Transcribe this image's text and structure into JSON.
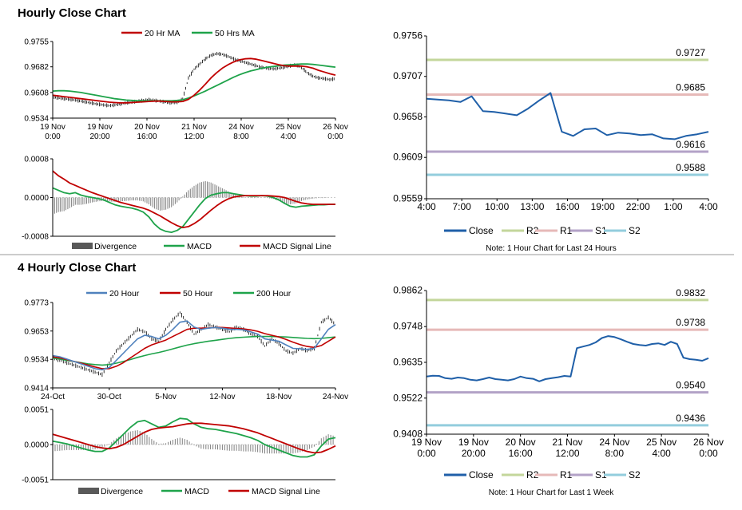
{
  "sections": {
    "hourly_title": "Hourly Close Chart",
    "four_hourly_title": "4 Hourly Close Chart"
  },
  "colors": {
    "close": "#1f5fa8",
    "ma20": "#c00000",
    "ma50": "#1ea34a",
    "r2": "#c3d69b",
    "r1": "#e6b9b8",
    "s1": "#b3a2c7",
    "s2": "#93cddd",
    "price": "#000000",
    "divergence": "#7f7f7f",
    "macd": "#1ea34a",
    "signal": "#c00000",
    "h4_20": "#4f81bd",
    "h4_50": "#c00000",
    "h4_200": "#1ea34a"
  },
  "chart_data": [
    {
      "id": "hourly_price",
      "type": "line",
      "title": "Hourly Close Chart",
      "xlabels": [
        "19 Nov\n0:00",
        "19 Nov\n20:00",
        "20 Nov\n16:00",
        "21 Nov\n12:00",
        "24 Nov\n8:00",
        "25 Nov\n4:00",
        "26 Nov\n0:00"
      ],
      "yticks": [
        "0.9755",
        "0.9682",
        "0.9608",
        "0.9534"
      ],
      "ylim": [
        0.9534,
        0.9755
      ],
      "legend": [
        "20 Hr MA",
        "50 Hrs MA"
      ],
      "price": [
        0.9595,
        0.9592,
        0.959,
        0.9588,
        0.9586,
        0.9583,
        0.958,
        0.9577,
        0.9574,
        0.9572,
        0.957,
        0.9572,
        0.9575,
        0.9578,
        0.958,
        0.9583,
        0.9585,
        0.9587,
        0.9585,
        0.9583,
        0.958,
        0.9578,
        0.958,
        0.959,
        0.965,
        0.9675,
        0.969,
        0.9705,
        0.9715,
        0.972,
        0.9718,
        0.9712,
        0.9705,
        0.97,
        0.9695,
        0.969,
        0.9685,
        0.968,
        0.9678,
        0.9676,
        0.9678,
        0.9681,
        0.9685,
        0.9688,
        0.968,
        0.9665,
        0.9655,
        0.965,
        0.9648,
        0.9645,
        0.9648
      ],
      "ma20": [
        0.96,
        0.9598,
        0.9596,
        0.9594,
        0.9592,
        0.959,
        0.9588,
        0.9586,
        0.9584,
        0.9582,
        0.958,
        0.9579,
        0.9578,
        0.9578,
        0.9579,
        0.958,
        0.9581,
        0.9582,
        0.9583,
        0.9583,
        0.9582,
        0.9581,
        0.9581,
        0.9582,
        0.9588,
        0.96,
        0.9615,
        0.9632,
        0.965,
        0.9665,
        0.9678,
        0.9688,
        0.9696,
        0.9702,
        0.9705,
        0.9706,
        0.9704,
        0.97,
        0.9696,
        0.9692,
        0.9688,
        0.9685,
        0.9684,
        0.9684,
        0.9684,
        0.9682,
        0.9678,
        0.9672,
        0.9667,
        0.9662,
        0.9658
      ],
      "ma50": [
        0.9612,
        0.9613,
        0.9613,
        0.9612,
        0.961,
        0.9608,
        0.9605,
        0.9602,
        0.9599,
        0.9596,
        0.9593,
        0.959,
        0.9588,
        0.9586,
        0.9585,
        0.9584,
        0.9584,
        0.9584,
        0.9584,
        0.9584,
        0.9584,
        0.9584,
        0.9585,
        0.9587,
        0.9592,
        0.9598,
        0.9605,
        0.9612,
        0.962,
        0.9628,
        0.9636,
        0.9644,
        0.9652,
        0.9659,
        0.9665,
        0.967,
        0.9674,
        0.9678,
        0.9681,
        0.9683,
        0.9685,
        0.9687,
        0.9688,
        0.9689,
        0.969,
        0.969,
        0.9689,
        0.9687,
        0.9685,
        0.9683,
        0.9681
      ]
    },
    {
      "id": "hourly_macd",
      "type": "line",
      "yticks": [
        "0.0008",
        "0.0000",
        "-0.0008"
      ],
      "ylim": [
        -0.0008,
        0.0008
      ],
      "legend": [
        "Divergence",
        "MACD",
        "MACD Signal Line"
      ],
      "macd": [
        0.0002,
        0.00015,
        0.0001,
        8e-05,
        0.0001,
        5e-05,
        2e-05,
        0.0,
        -2e-05,
        -5e-05,
        -0.0001,
        -0.00015,
        -0.00018,
        -0.0002,
        -0.00022,
        -0.00025,
        -0.0003,
        -0.0004,
        -0.00055,
        -0.00065,
        -0.0007,
        -0.00072,
        -0.00068,
        -0.0006,
        -0.00045,
        -0.0003,
        -0.00015,
        -2e-05,
        5e-05,
        8e-05,
        0.0001,
        0.0001,
        8e-05,
        6e-05,
        4e-05,
        3e-05,
        3e-05,
        4e-05,
        3e-05,
        0.0,
        -5e-05,
        -0.00012,
        -0.00018,
        -0.0002,
        -0.00018,
        -0.00017,
        -0.00016,
        -0.00015,
        -0.00015,
        -0.00014,
        -0.00014
      ],
      "signal": [
        0.00055,
        0.00045,
        0.00038,
        0.0003,
        0.00025,
        0.0002,
        0.00015,
        0.0001,
        6e-05,
        2e-05,
        -2e-05,
        -6e-05,
        -0.0001,
        -0.00013,
        -0.00016,
        -0.00019,
        -0.00022,
        -0.00026,
        -0.00032,
        -0.00038,
        -0.00045,
        -0.00052,
        -0.00058,
        -0.00062,
        -0.0006,
        -0.00054,
        -0.00046,
        -0.00036,
        -0.00026,
        -0.00017,
        -9e-05,
        -3e-05,
        1e-05,
        3e-05,
        4e-05,
        4e-05,
        4e-05,
        4e-05,
        4e-05,
        3e-05,
        2e-05,
        0.0,
        -4e-05,
        -8e-05,
        -0.00011,
        -0.00013,
        -0.00014,
        -0.00014,
        -0.00014,
        -0.00014,
        -0.00014
      ]
    },
    {
      "id": "hourly_levels",
      "type": "line",
      "note": "Note: 1 Hour Chart for Last 24 Hours",
      "xlabels": [
        "4:00",
        "7:00",
        "10:00",
        "13:00",
        "16:00",
        "19:00",
        "22:00",
        "1:00",
        "4:00"
      ],
      "yticks": [
        "0.9756",
        "0.9707",
        "0.9658",
        "0.9609",
        "0.9559"
      ],
      "ylim": [
        0.9559,
        0.9756
      ],
      "legend": [
        "Close",
        "R2",
        "R1",
        "S1",
        "S2"
      ],
      "levels": {
        "R2": 0.9727,
        "R1": 0.9685,
        "S1": 0.9616,
        "S2": 0.9588
      },
      "level_labels": {
        "R2": "0.9727",
        "R1": "0.9685",
        "S1": "0.9616",
        "S2": "0.9588"
      },
      "close": [
        0.968,
        0.9679,
        0.9678,
        0.9676,
        0.9683,
        0.9665,
        0.9664,
        0.9662,
        0.966,
        0.9668,
        0.9678,
        0.9687,
        0.964,
        0.9635,
        0.9643,
        0.9644,
        0.9636,
        0.9639,
        0.9638,
        0.9636,
        0.9637,
        0.9632,
        0.9631,
        0.9635,
        0.9637,
        0.964
      ]
    },
    {
      "id": "four_hourly_price",
      "type": "line",
      "title": "4 Hourly Close Chart",
      "xlabels": [
        "24-Oct",
        "30-Oct",
        "5-Nov",
        "12-Nov",
        "18-Nov",
        "24-Nov"
      ],
      "yticks": [
        "0.9773",
        "0.9653",
        "0.9534",
        "0.9414"
      ],
      "ylim": [
        0.9414,
        0.9773
      ],
      "legend": [
        "20 Hour",
        "50 Hour",
        "200 Hour"
      ],
      "price": [
        0.954,
        0.953,
        0.952,
        0.951,
        0.95,
        0.949,
        0.948,
        0.947,
        0.952,
        0.957,
        0.96,
        0.963,
        0.966,
        0.965,
        0.962,
        0.961,
        0.966,
        0.97,
        0.973,
        0.969,
        0.964,
        0.966,
        0.968,
        0.967,
        0.966,
        0.965,
        0.967,
        0.966,
        0.964,
        0.963,
        0.959,
        0.962,
        0.96,
        0.957,
        0.956,
        0.958,
        0.957,
        0.958,
        0.969,
        0.971,
        0.968
      ],
      "ma20": [
        0.955,
        0.9545,
        0.9535,
        0.9525,
        0.9515,
        0.9505,
        0.9495,
        0.949,
        0.95,
        0.953,
        0.956,
        0.959,
        0.962,
        0.9635,
        0.963,
        0.962,
        0.9635,
        0.966,
        0.969,
        0.9695,
        0.967,
        0.966,
        0.9665,
        0.9668,
        0.9665,
        0.966,
        0.966,
        0.9658,
        0.965,
        0.964,
        0.962,
        0.9615,
        0.961,
        0.9595,
        0.958,
        0.9578,
        0.9576,
        0.958,
        0.962,
        0.966,
        0.968
      ],
      "ma50": [
        0.9545,
        0.954,
        0.9533,
        0.9525,
        0.9518,
        0.951,
        0.9502,
        0.9495,
        0.9495,
        0.9505,
        0.952,
        0.954,
        0.956,
        0.958,
        0.9595,
        0.9605,
        0.9615,
        0.963,
        0.9645,
        0.966,
        0.9665,
        0.9665,
        0.9666,
        0.9668,
        0.9668,
        0.9666,
        0.9664,
        0.9662,
        0.9658,
        0.9652,
        0.9642,
        0.9635,
        0.9628,
        0.9618,
        0.9606,
        0.9596,
        0.9588,
        0.9584,
        0.9592,
        0.961,
        0.9628
      ],
      "ma200": [
        0.954,
        0.9535,
        0.953,
        0.9525,
        0.952,
        0.9515,
        0.9512,
        0.951,
        0.9512,
        0.9518,
        0.9525,
        0.9533,
        0.9542,
        0.955,
        0.9557,
        0.9563,
        0.957,
        0.9578,
        0.9586,
        0.9594,
        0.96,
        0.9605,
        0.961,
        0.9614,
        0.9618,
        0.9622,
        0.9625,
        0.9627,
        0.9629,
        0.963,
        0.963,
        0.963,
        0.9629,
        0.9628,
        0.9626,
        0.9624,
        0.9622,
        0.9621,
        0.9622,
        0.9625,
        0.9628
      ]
    },
    {
      "id": "four_hourly_macd",
      "type": "line",
      "yticks": [
        "0.0051",
        "0.0000",
        "-0.0051"
      ],
      "ylim": [
        -0.0051,
        0.0051
      ],
      "legend": [
        "Divergence",
        "MACD",
        "MACD Signal Line"
      ],
      "macd": [
        0.0005,
        0.0003,
        0.0001,
        -0.0002,
        -0.0005,
        -0.0008,
        -0.001,
        -0.001,
        -0.0005,
        0.0005,
        0.0015,
        0.0025,
        0.0033,
        0.0035,
        0.003,
        0.0025,
        0.0027,
        0.0033,
        0.0038,
        0.0037,
        0.003,
        0.0025,
        0.0023,
        0.0022,
        0.002,
        0.0018,
        0.0016,
        0.0013,
        0.001,
        0.0006,
        0.0,
        -0.0004,
        -0.0008,
        -0.0012,
        -0.0016,
        -0.0018,
        -0.0018,
        -0.0015,
        -0.0002,
        0.0008,
        0.001
      ],
      "signal": [
        0.0015,
        0.0012,
        0.0009,
        0.0006,
        0.0003,
        0.0,
        -0.0003,
        -0.0005,
        -0.0006,
        -0.0004,
        0.0,
        0.0006,
        0.0012,
        0.0018,
        0.0022,
        0.0024,
        0.0025,
        0.0026,
        0.0028,
        0.003,
        0.0031,
        0.0031,
        0.003,
        0.0029,
        0.0028,
        0.0027,
        0.0025,
        0.0023,
        0.002,
        0.0017,
        0.0013,
        0.0009,
        0.0005,
        0.0001,
        -0.0003,
        -0.0007,
        -0.001,
        -0.0012,
        -0.0011,
        -0.0007,
        -0.0002
      ]
    },
    {
      "id": "four_hourly_levels",
      "type": "line",
      "note": "Note: 1 Hour Chart for Last 1 Week",
      "xlabels": [
        "19 Nov\n0:00",
        "19 Nov\n20:00",
        "20 Nov\n16:00",
        "21 Nov\n12:00",
        "24 Nov\n8:00",
        "25 Nov\n4:00",
        "26 Nov\n0:00"
      ],
      "yticks": [
        "0.9862",
        "0.9748",
        "0.9635",
        "0.9522",
        "0.9408"
      ],
      "ylim": [
        0.9408,
        0.9862
      ],
      "legend": [
        "Close",
        "R2",
        "R1",
        "S1",
        "S2"
      ],
      "levels": {
        "R2": 0.9832,
        "R1": 0.9738,
        "S1": 0.954,
        "S2": 0.9436
      },
      "level_labels": {
        "R2": "0.9832",
        "R1": "0.9738",
        "S1": "0.9540",
        "S2": "0.9436"
      },
      "close": [
        0.959,
        0.9593,
        0.9592,
        0.9585,
        0.9583,
        0.9587,
        0.9585,
        0.958,
        0.9578,
        0.9582,
        0.9587,
        0.9582,
        0.958,
        0.9578,
        0.9582,
        0.959,
        0.9585,
        0.9583,
        0.9575,
        0.9582,
        0.9585,
        0.9588,
        0.9592,
        0.959,
        0.968,
        0.9685,
        0.969,
        0.9698,
        0.9712,
        0.9718,
        0.9715,
        0.9708,
        0.97,
        0.9693,
        0.969,
        0.9688,
        0.9693,
        0.9695,
        0.969,
        0.97,
        0.9693,
        0.965,
        0.9645,
        0.9643,
        0.964,
        0.9648
      ]
    }
  ]
}
